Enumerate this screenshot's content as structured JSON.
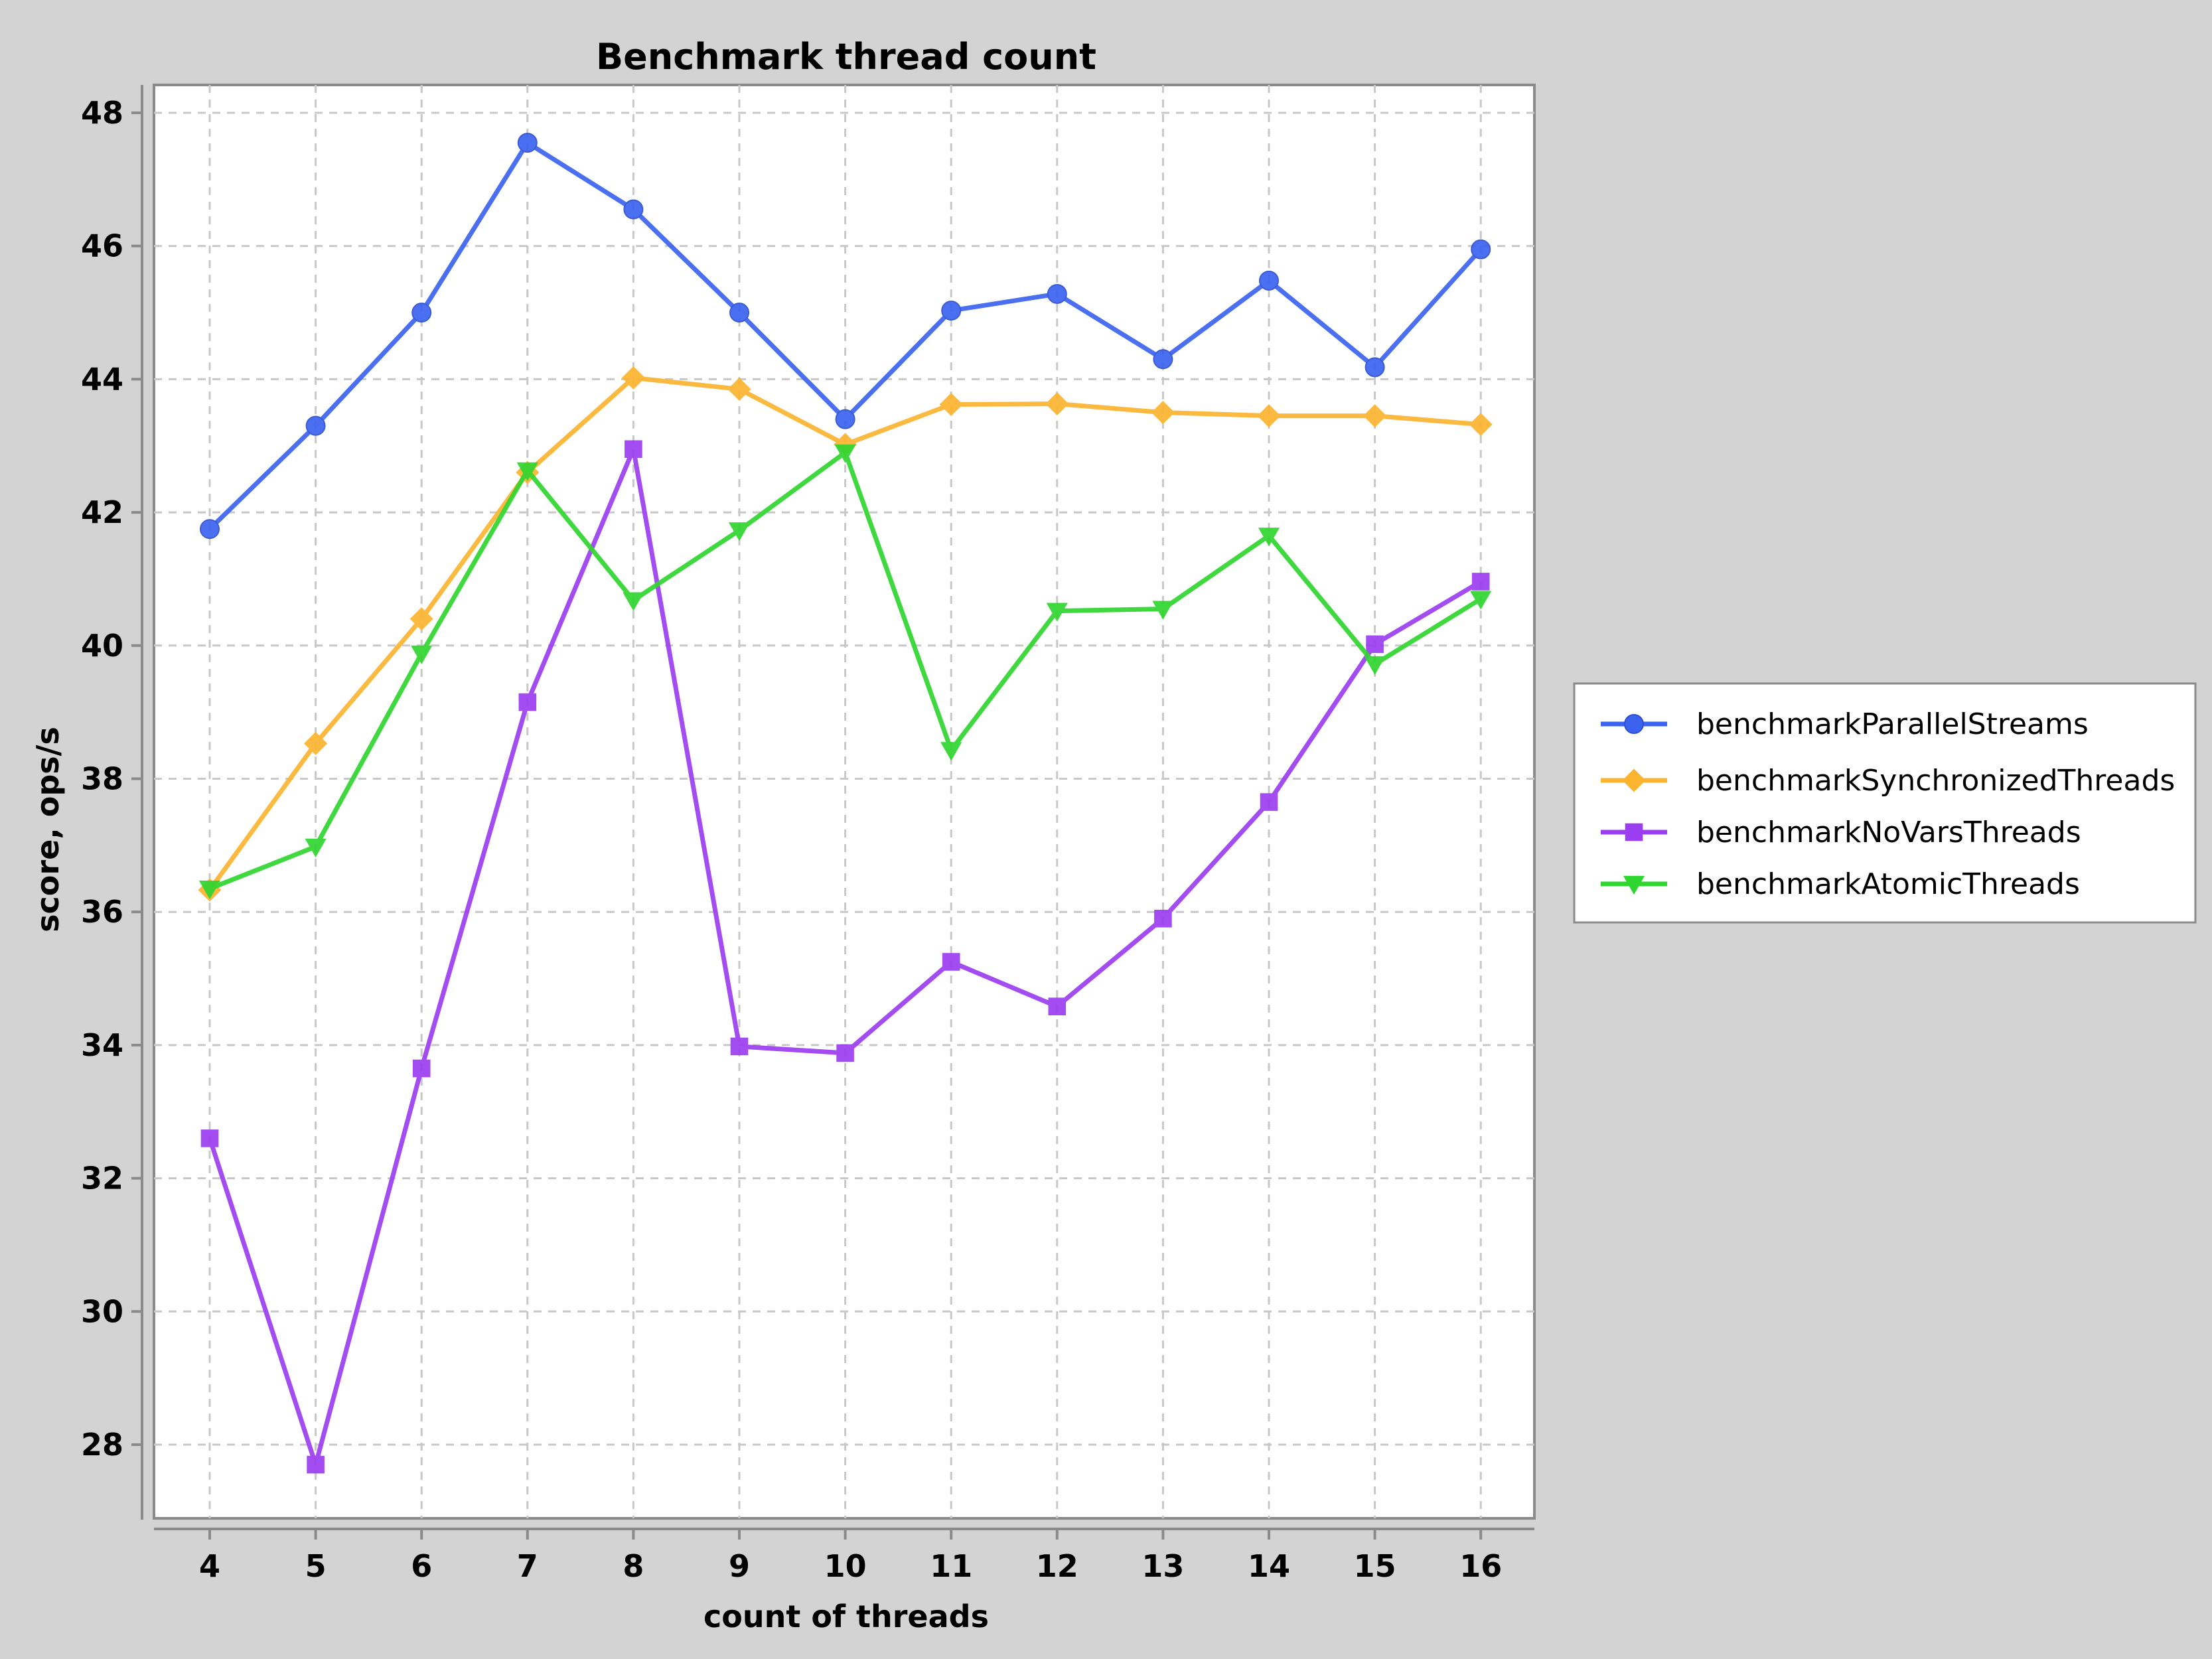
{
  "chart_data": {
    "type": "line",
    "title": "Benchmark thread count",
    "xlabel": "count of threads",
    "ylabel": "score, ops/s",
    "x": [
      4,
      5,
      6,
      7,
      8,
      9,
      10,
      11,
      12,
      13,
      14,
      15,
      16
    ],
    "xticks": [
      "4",
      "5",
      "6",
      "7",
      "8",
      "9",
      "10",
      "11",
      "12",
      "13",
      "14",
      "15",
      "16"
    ],
    "yticks": [
      "28",
      "30",
      "32",
      "34",
      "36",
      "38",
      "40",
      "42",
      "44",
      "46",
      "48"
    ],
    "ylim": [
      27,
      48.4
    ],
    "xlim": [
      3.5,
      16.5
    ],
    "grid": true,
    "legend_position": "right",
    "series": [
      {
        "name": "benchmarkParallelStreams",
        "color": "#3b63f0",
        "marker": "circle",
        "values": [
          41.75,
          43.3,
          45.0,
          47.55,
          46.55,
          45.0,
          43.4,
          45.03,
          45.28,
          44.3,
          45.48,
          44.18,
          45.95
        ]
      },
      {
        "name": "benchmarkSynchronizedThreads",
        "color": "#fbb430",
        "marker": "diamond",
        "values": [
          36.33,
          38.53,
          40.4,
          42.6,
          44.02,
          43.85,
          43.02,
          43.62,
          43.63,
          43.5,
          43.45,
          43.45,
          43.32
        ]
      },
      {
        "name": "benchmarkNoVarsThreads",
        "color": "#9b3df0",
        "marker": "square",
        "values": [
          32.6,
          27.7,
          33.65,
          39.15,
          42.95,
          33.98,
          33.88,
          35.25,
          34.58,
          35.9,
          37.65,
          40.02,
          40.96
        ]
      },
      {
        "name": "benchmarkAtomicThreads",
        "color": "#2fd62f",
        "marker": "triangle-down",
        "values": [
          36.35,
          36.98,
          39.88,
          42.63,
          40.68,
          41.73,
          42.9,
          38.43,
          40.52,
          40.55,
          41.65,
          39.72,
          40.7
        ]
      }
    ]
  }
}
